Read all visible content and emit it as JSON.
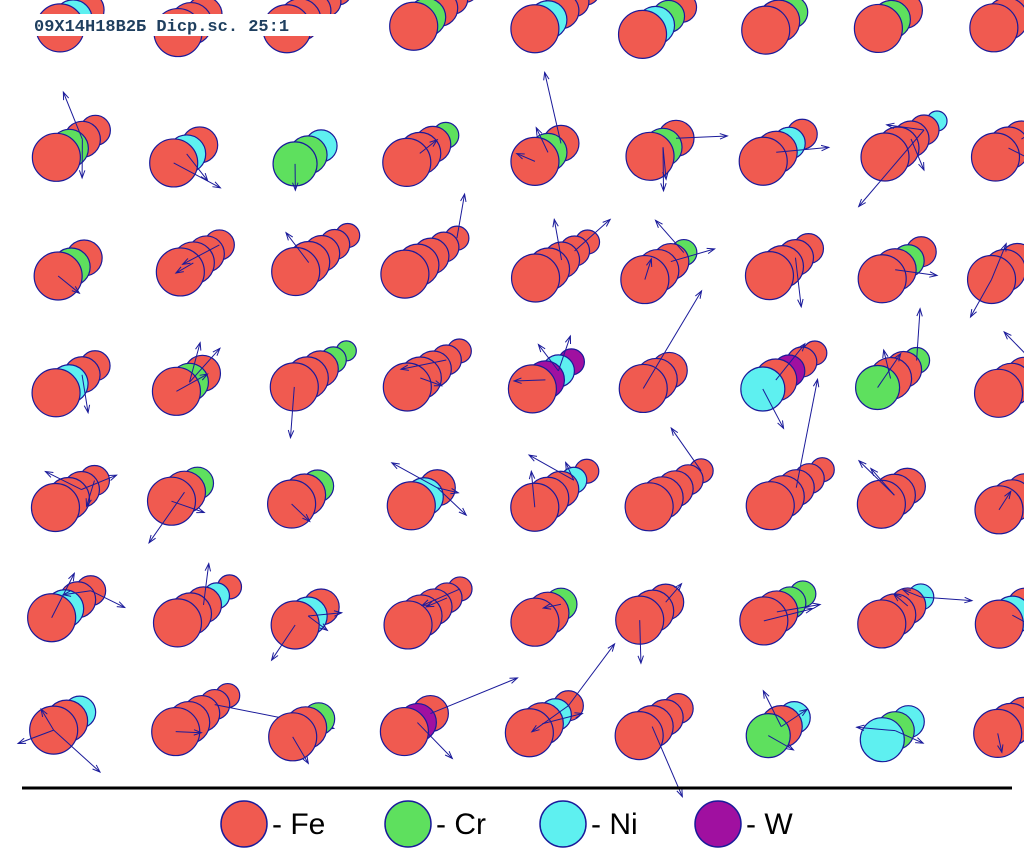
{
  "header": {
    "title": "09Х14Н18В2Б Dicp.sc. 25:1"
  },
  "legend": {
    "items": [
      {
        "label": "- Fe"
      },
      {
        "label": "- Cr"
      },
      {
        "label": "- Ni"
      },
      {
        "label": "- W"
      }
    ]
  }
}
